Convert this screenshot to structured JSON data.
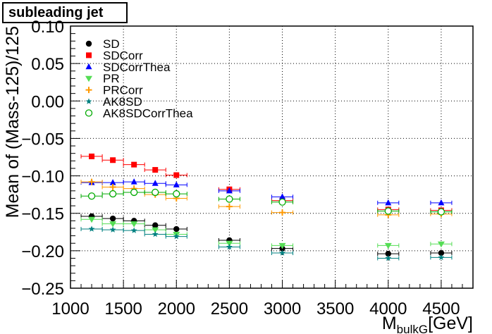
{
  "chart_data": {
    "type": "scatter",
    "title": "subleading jet",
    "ylabel": "Mean of (Mass-125)/125",
    "xlabel_main": "M",
    "xlabel_sub": "bulkG",
    "xlabel_unit": "[GeV]",
    "xlim": [
      1000,
      4800
    ],
    "ylim": [
      -0.25,
      0.1
    ],
    "grid": true,
    "legend_position": "top-left",
    "xticks": [
      1000,
      1500,
      2000,
      2500,
      3000,
      3500,
      4000,
      4500
    ],
    "yticks": [
      -0.25,
      -0.2,
      -0.15,
      -0.1,
      -0.05,
      0.0,
      0.05,
      0.1
    ],
    "xtick_labels": [
      "1000",
      "1500",
      "2000",
      "2500",
      "3000",
      "3500",
      "4000",
      "4500"
    ],
    "ytick_labels": [
      "−0.25",
      "−0.20",
      "−0.15",
      "−0.10",
      "−0.05",
      "0.00",
      "0.05",
      "0.10"
    ],
    "x": [
      1200,
      1400,
      1600,
      1800,
      2000,
      2500,
      3000,
      4000,
      4500
    ],
    "xerr": [
      100,
      100,
      100,
      100,
      100,
      100,
      100,
      100,
      100
    ],
    "series": [
      {
        "name": "SD",
        "marker": "circle",
        "color": "#000000",
        "values": [
          -0.154,
          -0.157,
          -0.16,
          -0.166,
          -0.171,
          -0.186,
          -0.197,
          -0.204,
          -0.203
        ]
      },
      {
        "name": "SDCorr",
        "marker": "square",
        "color": "#ff0000",
        "values": [
          -0.074,
          -0.079,
          -0.085,
          -0.092,
          -0.099,
          -0.118,
          -0.133,
          -0.145,
          -0.146
        ]
      },
      {
        "name": "SDCorrThea",
        "marker": "triangle-up",
        "color": "#0000ff",
        "values": [
          -0.109,
          -0.109,
          -0.108,
          -0.11,
          -0.112,
          -0.12,
          -0.128,
          -0.136,
          -0.136
        ]
      },
      {
        "name": "PR",
        "marker": "triangle-down",
        "color": "#55dd55",
        "values": [
          -0.158,
          -0.164,
          -0.164,
          -0.172,
          -0.178,
          -0.19,
          -0.193,
          -0.193,
          -0.191
        ]
      },
      {
        "name": "PRCorr",
        "marker": "plus",
        "color": "#ff9900",
        "values": [
          -0.108,
          -0.115,
          -0.117,
          -0.125,
          -0.13,
          -0.141,
          -0.149,
          -0.152,
          -0.151
        ]
      },
      {
        "name": "AK8SD",
        "marker": "star",
        "color": "#008080",
        "values": [
          -0.171,
          -0.172,
          -0.173,
          -0.178,
          -0.181,
          -0.195,
          -0.203,
          -0.21,
          -0.209
        ]
      },
      {
        "name": "AK8SDCorrThea",
        "marker": "open-circle",
        "color": "#00aa00",
        "values": [
          -0.127,
          -0.124,
          -0.122,
          -0.122,
          -0.124,
          -0.131,
          -0.135,
          -0.147,
          -0.148
        ]
      }
    ]
  }
}
